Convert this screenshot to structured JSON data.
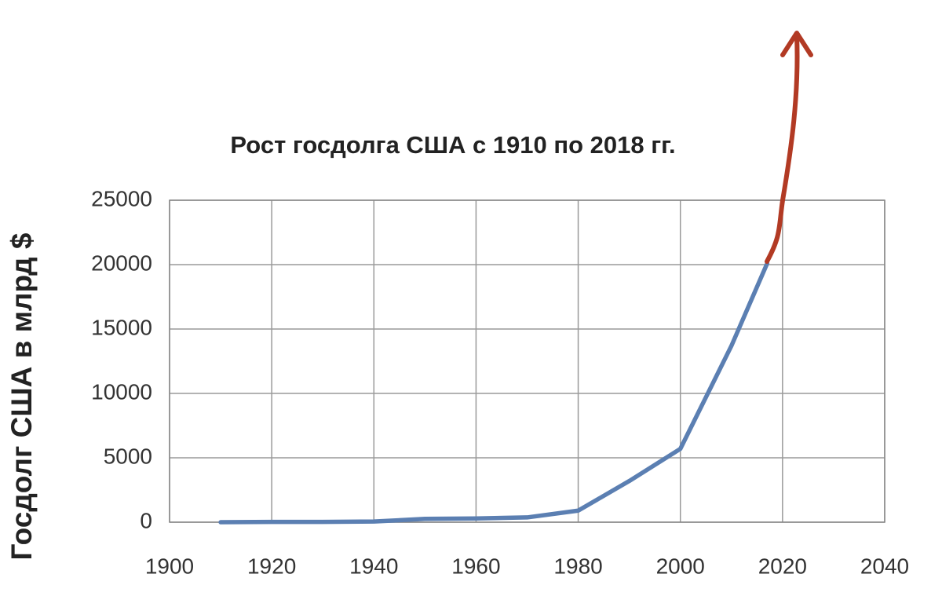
{
  "chart_data": {
    "type": "line",
    "title": "Рост госдолга США с 1910 по 2018 гг.",
    "y_label": "Госдолг США в млрд $",
    "x": [
      1910,
      1920,
      1930,
      1940,
      1950,
      1960,
      1970,
      1980,
      1990,
      2000,
      2010,
      2017
    ],
    "values": [
      0,
      20,
      20,
      50,
      260,
      290,
      370,
      900,
      3200,
      5700,
      13700,
      20100
    ],
    "color": "#5b7fb2",
    "xlim": [
      1900,
      2040
    ],
    "xticks": [
      1900,
      1920,
      1940,
      1960,
      1980,
      2000,
      2020,
      2040
    ],
    "ylim": [
      0,
      25000
    ],
    "yticks": [
      0,
      5000,
      10000,
      15000,
      20000,
      25000
    ],
    "grid": true
  }
}
